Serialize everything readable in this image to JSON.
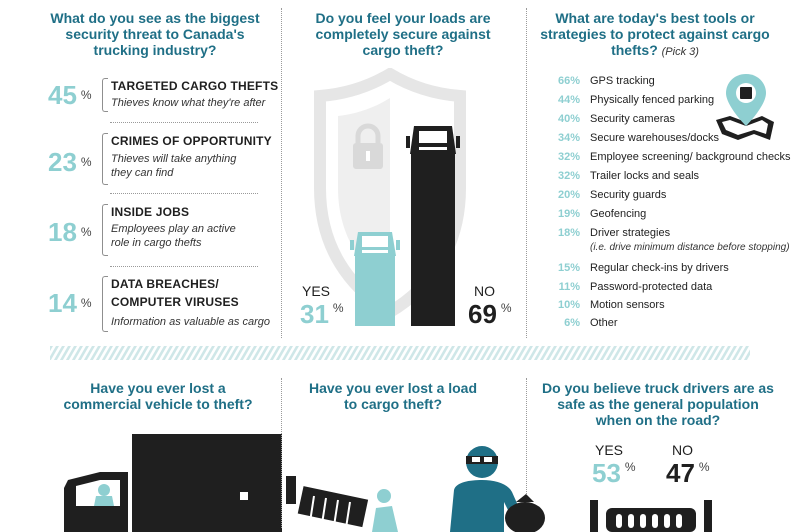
{
  "colors": {
    "teal": "#1f6f86",
    "light_teal": "#8ecfd1",
    "dark": "#1f1f1f",
    "shield": "#e6e6e6"
  },
  "panel1": {
    "title": "What do you see as the biggest security threat to Canada's trucking industry?",
    "percent_sign": "%",
    "items": [
      {
        "value": "45",
        "title": "TARGETED CARGO THEFTS",
        "title2": "",
        "desc": "Thieves know what they're after",
        "desc2": ""
      },
      {
        "value": "23",
        "title": "CRIMES OF OPPORTUNITY",
        "title2": "",
        "desc": "Thieves will take anything",
        "desc2": "they can find"
      },
      {
        "value": "18",
        "title": "INSIDE JOBS",
        "title2": "",
        "desc": "Employees play an active",
        "desc2": "role in cargo thefts"
      },
      {
        "value": "14",
        "title": "DATA BREACHES/",
        "title2": "COMPUTER VIRUSES",
        "desc": "Information as valuable as cargo",
        "desc2": ""
      }
    ]
  },
  "panel2": {
    "title": "Do you feel your loads are completely secure against cargo theft?",
    "yes_label": "YES",
    "yes_value": "31",
    "no_label": "NO",
    "no_value": "69",
    "percent_sign": "%"
  },
  "panel3": {
    "title": "What are today's best tools or strategies to protect against cargo thefts?",
    "note": "(Pick 3)",
    "items": [
      {
        "value": "66%",
        "label": "GPS tracking"
      },
      {
        "value": "44%",
        "label": "Physically fenced parking"
      },
      {
        "value": "40%",
        "label": "Security cameras"
      },
      {
        "value": "34%",
        "label": "Secure warehouses/docks"
      },
      {
        "value": "32%",
        "label": "Employee screening/ background checks"
      },
      {
        "value": "32%",
        "label": "Trailer locks and seals"
      },
      {
        "value": "20%",
        "label": "Security guards"
      },
      {
        "value": "19%",
        "label": "Geofencing"
      },
      {
        "value": "18%",
        "label": "Driver strategies"
      },
      {
        "value": "15%",
        "label": "Regular check-ins by drivers"
      },
      {
        "value": "11%",
        "label": "Password-protected data"
      },
      {
        "value": "10%",
        "label": "Motion sensors"
      },
      {
        "value": "6%",
        "label": "Other"
      }
    ],
    "driver_note": "(i.e. drive minimum distance before stopping)"
  },
  "panel4": {
    "title": "Have you ever lost a commercial vehicle to theft?"
  },
  "panel5": {
    "title": "Have you ever lost a load to cargo theft?"
  },
  "panel6": {
    "title": "Do you believe truck drivers are as safe as the general population when on the road?",
    "yes_label": "YES",
    "yes_value": "53",
    "no_label": "NO",
    "no_value": "47",
    "percent_sign": "%"
  },
  "chart_data": [
    {
      "type": "bar",
      "title": "What do you see as the biggest security threat to Canada's trucking industry?",
      "categories": [
        "TARGETED CARGO THEFTS",
        "CRIMES OF OPPORTUNITY",
        "INSIDE JOBS",
        "DATA BREACHES/ COMPUTER VIRUSES"
      ],
      "values": [
        45,
        23,
        18,
        14
      ]
    },
    {
      "type": "bar",
      "title": "Do you feel your loads are completely secure against cargo theft?",
      "categories": [
        "YES",
        "NO"
      ],
      "values": [
        31,
        69
      ]
    },
    {
      "type": "bar",
      "title": "What are today's best tools or strategies to protect against cargo thefts?",
      "categories": [
        "GPS tracking",
        "Physically fenced parking",
        "Security cameras",
        "Secure warehouses/docks",
        "Employee screening/ background checks",
        "Trailer locks and seals",
        "Security guards",
        "Geofencing",
        "Driver strategies",
        "Regular check-ins by drivers",
        "Password-protected data",
        "Motion sensors",
        "Other"
      ],
      "values": [
        66,
        44,
        40,
        34,
        32,
        32,
        20,
        19,
        18,
        15,
        11,
        10,
        6
      ]
    },
    {
      "type": "bar",
      "title": "Do you believe truck drivers are as safe as the general population when on the road?",
      "categories": [
        "YES",
        "NO"
      ],
      "values": [
        53,
        47
      ]
    }
  ]
}
